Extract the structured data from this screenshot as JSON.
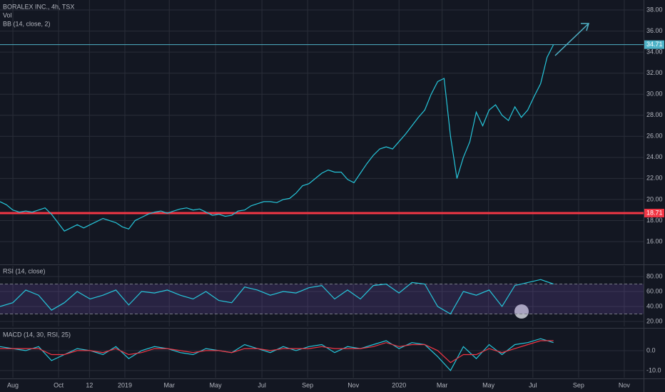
{
  "chart_data": [
    {
      "type": "line",
      "title": "BORALEX INC., 4h, TSX",
      "subtitles": [
        "Vol",
        "BB (14, close, 2)"
      ],
      "xlim": [
        0,
        100
      ],
      "xticks": [
        {
          "value": 2,
          "label": "Aug"
        },
        {
          "value": 9.1,
          "label": "Oct"
        },
        {
          "value": 13.9,
          "label": "12"
        },
        {
          "value": 19.4,
          "label": "2019"
        },
        {
          "value": 26.3,
          "label": "Mar"
        },
        {
          "value": 33.5,
          "label": "May"
        },
        {
          "value": 40.7,
          "label": "Jul"
        },
        {
          "value": 47.8,
          "label": "Sep"
        },
        {
          "value": 54.9,
          "label": "Nov"
        },
        {
          "value": 62,
          "label": "2020"
        },
        {
          "value": 68.7,
          "label": "Mar"
        },
        {
          "value": 75.9,
          "label": "May"
        },
        {
          "value": 82.8,
          "label": "Jul"
        },
        {
          "value": 89.9,
          "label": "Sep"
        },
        {
          "value": 97,
          "label": "Nov"
        }
      ],
      "ylim": [
        13.9,
        38.95
      ],
      "yticks": [
        {
          "value": 16,
          "label": "16.00"
        },
        {
          "value": 18,
          "label": "18.00"
        },
        {
          "value": 20,
          "label": "20.00"
        },
        {
          "value": 22,
          "label": "22.00"
        },
        {
          "value": 24,
          "label": "24.00"
        },
        {
          "value": 26,
          "label": "26.00"
        },
        {
          "value": 28,
          "label": "28.00"
        },
        {
          "value": 30,
          "label": "30.00"
        },
        {
          "value": 32,
          "label": "32.00"
        },
        {
          "value": 34,
          "label": "34.00"
        },
        {
          "value": 36,
          "label": "36.00"
        },
        {
          "value": 38,
          "label": "38.00"
        }
      ],
      "x": [
        0,
        1,
        2,
        3,
        4,
        5,
        6,
        7,
        8,
        9,
        10,
        11,
        12,
        13,
        14,
        15,
        16,
        17,
        18,
        19,
        20,
        21,
        22,
        23,
        24,
        25,
        26,
        27,
        28,
        29,
        30,
        31,
        32,
        33,
        34,
        35,
        36,
        37,
        38,
        39,
        40,
        41,
        42,
        43,
        44,
        45,
        46,
        47,
        48,
        49,
        50,
        51,
        52,
        53,
        54,
        55,
        56,
        57,
        58,
        59,
        60,
        61,
        62,
        63,
        64,
        65,
        66,
        67,
        68,
        69,
        70,
        71,
        72,
        73,
        74,
        75,
        76,
        77,
        78,
        79,
        80,
        81,
        82,
        83,
        84,
        85,
        86
      ],
      "series": [
        {
          "color": "#26c6da",
          "values": [
            19.8,
            19.5,
            19.0,
            18.8,
            18.9,
            18.8,
            19.0,
            19.2,
            18.6,
            17.8,
            17.0,
            17.3,
            17.6,
            17.3,
            17.6,
            17.9,
            18.2,
            18.0,
            17.8,
            17.4,
            17.2,
            18.0,
            18.3,
            18.6,
            18.8,
            18.9,
            18.7,
            18.9,
            19.1,
            19.2,
            19.0,
            19.1,
            18.8,
            18.5,
            18.6,
            18.4,
            18.5,
            18.9,
            19.0,
            19.4,
            19.6,
            19.8,
            19.8,
            19.7,
            20.0,
            20.1,
            20.6,
            21.3,
            21.5,
            22.0,
            22.5,
            22.8,
            22.6,
            22.6,
            21.9,
            21.6,
            22.5,
            23.4,
            24.2,
            24.8,
            25.0,
            24.8,
            25.5,
            26.2,
            27.0,
            27.8,
            28.5,
            30.0,
            31.2,
            31.5,
            26.0,
            22.0,
            24.0,
            25.5,
            28.3,
            27.0,
            28.5,
            29.0,
            28.0,
            27.5,
            28.8,
            27.8,
            28.5,
            29.8,
            31.0,
            33.5,
            34.71
          ]
        }
      ],
      "hlines": [
        {
          "value": 34.71,
          "color": "#4fb3c8"
        },
        {
          "value": 18.71,
          "color": "#f23645"
        }
      ]
    },
    {
      "type": "line",
      "title": "RSI (14, close)",
      "ylim": [
        13.3,
        94.3
      ],
      "yticks": [
        {
          "value": 20,
          "label": "20.00"
        },
        {
          "value": 40,
          "label": "40.00"
        },
        {
          "value": 60,
          "label": "60.00"
        },
        {
          "value": 80,
          "label": "80.00"
        }
      ],
      "band": [
        30,
        70
      ],
      "x": [
        0,
        2,
        4,
        6,
        8,
        10,
        12,
        14,
        16,
        18,
        20,
        22,
        24,
        26,
        28,
        30,
        32,
        34,
        36,
        38,
        40,
        42,
        44,
        46,
        48,
        50,
        52,
        54,
        56,
        58,
        60,
        62,
        64,
        66,
        68,
        70,
        72,
        74,
        76,
        78,
        80,
        82,
        84,
        86
      ],
      "series": [
        {
          "color": "#26c6da",
          "values": [
            40,
            45,
            62,
            55,
            35,
            45,
            60,
            50,
            55,
            62,
            42,
            60,
            58,
            62,
            55,
            50,
            60,
            48,
            45,
            66,
            62,
            55,
            60,
            58,
            65,
            68,
            50,
            62,
            50,
            68,
            70,
            58,
            72,
            70,
            40,
            30,
            60,
            55,
            62,
            40,
            68,
            72,
            76,
            70
          ]
        }
      ]
    },
    {
      "type": "line",
      "title": "MACD (14, 30, RSI, 25)",
      "ylim": [
        -13.6,
        10.7
      ],
      "yticks": [
        {
          "value": -10,
          "label": "-10.0"
        },
        {
          "value": 0,
          "label": "0.0"
        }
      ],
      "x": [
        0,
        2,
        4,
        6,
        8,
        10,
        12,
        14,
        16,
        18,
        20,
        22,
        24,
        26,
        28,
        30,
        32,
        34,
        36,
        38,
        40,
        42,
        44,
        46,
        48,
        50,
        52,
        54,
        56,
        58,
        60,
        62,
        64,
        66,
        68,
        70,
        72,
        74,
        76,
        78,
        80,
        82,
        84,
        86
      ],
      "series": [
        {
          "color": "#26c6da",
          "values": [
            2,
            1,
            0,
            2,
            -5,
            -2,
            1,
            0,
            -2,
            2,
            -4,
            0,
            2,
            1,
            -1,
            -2,
            1,
            0,
            -1,
            3,
            1,
            -1,
            2,
            0,
            2,
            3,
            -1,
            2,
            1,
            3,
            5,
            1,
            4,
            3,
            -3,
            -10,
            2,
            -4,
            3,
            -2,
            3,
            4,
            6,
            4
          ]
        },
        {
          "color": "#f23645",
          "values": [
            1,
            1,
            1,
            1,
            -2,
            -2,
            0,
            0,
            -1,
            1,
            -2,
            -1,
            1,
            1,
            0,
            -1,
            0,
            0,
            -1,
            1,
            1,
            0,
            1,
            1,
            1,
            2,
            1,
            1,
            1,
            2,
            4,
            2,
            3,
            3,
            0,
            -6,
            -2,
            -2,
            1,
            -1,
            1,
            3,
            5,
            5
          ]
        }
      ]
    }
  ]
}
